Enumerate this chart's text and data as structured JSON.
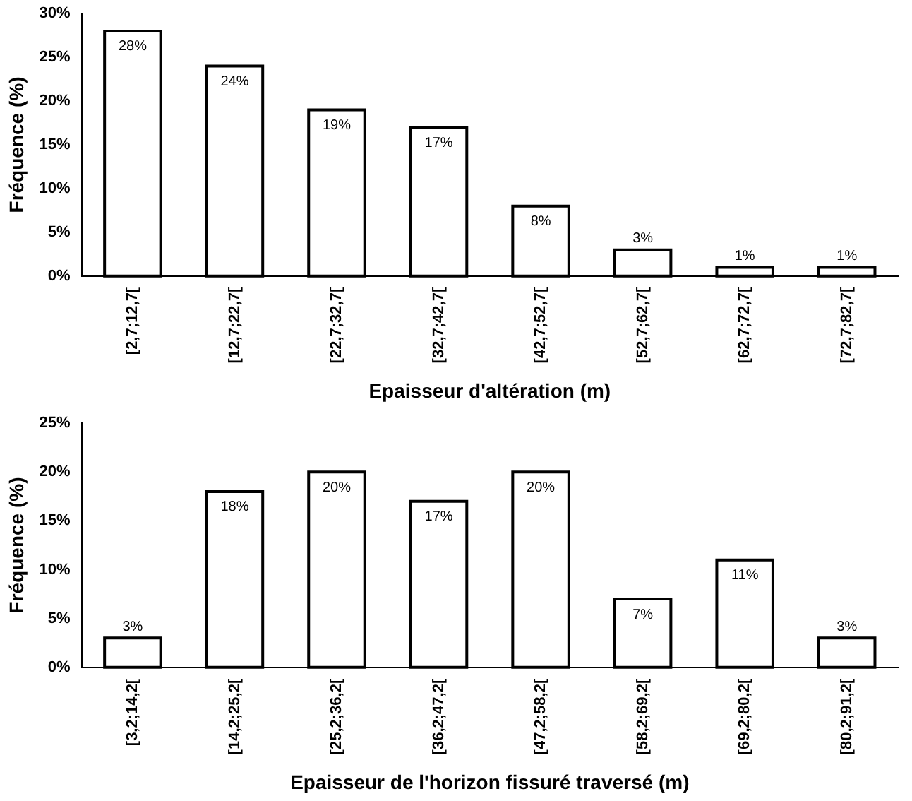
{
  "chart_data": [
    {
      "type": "bar",
      "categories": [
        "[2,7;12,7[",
        "[12,7;22,7[",
        "[22,7;32,7[",
        "[32,7;42,7[",
        "[42,7;52,7[",
        "[52,7;62,7[",
        "[62,7;72,7[",
        "[72,7;82,7["
      ],
      "values": [
        28,
        24,
        19,
        17,
        8,
        3,
        1,
        1
      ],
      "color": "#ffffff",
      "value_labels": [
        "28%",
        "24%",
        "19%",
        "17%",
        "8%",
        "3%",
        "1%",
        "1%"
      ],
      "xlabel": "Epaisseur d'altération (m)",
      "ylabel": "Fréquence (%)",
      "ylim": [
        0,
        30
      ],
      "yticks": [
        {
          "value": 0,
          "label": "0%"
        },
        {
          "value": 5,
          "label": "5%"
        },
        {
          "value": 10,
          "label": "10%"
        },
        {
          "value": 15,
          "label": "15%"
        },
        {
          "value": 20,
          "label": "20%"
        },
        {
          "value": 25,
          "label": "25%"
        },
        {
          "value": 30,
          "label": "30%"
        }
      ]
    },
    {
      "type": "bar",
      "categories": [
        "[3,2;14,2[",
        "[14,2;25,2[",
        "[25,2;36,2[",
        "[36,2;47,2[",
        "[47,2;58,2[",
        "[58,2;69,2[",
        "[69,2;80,2[",
        "[80,2;91,2["
      ],
      "values": [
        3,
        18,
        20,
        17,
        20,
        7,
        11,
        3
      ],
      "color": "#ffffff",
      "value_labels": [
        "3%",
        "18%",
        "20%",
        "17%",
        "20%",
        "7%",
        "11%",
        "3%"
      ],
      "xlabel": "Epaisseur de l'horizon fissuré traversé (m)",
      "ylabel": "Fréquence (%)",
      "ylim": [
        0,
        25
      ],
      "yticks": [
        {
          "value": 0,
          "label": "0%"
        },
        {
          "value": 5,
          "label": "5%"
        },
        {
          "value": 10,
          "label": "10%"
        },
        {
          "value": 15,
          "label": "15%"
        },
        {
          "value": 20,
          "label": "20%"
        },
        {
          "value": 25,
          "label": "25%"
        }
      ]
    }
  ]
}
